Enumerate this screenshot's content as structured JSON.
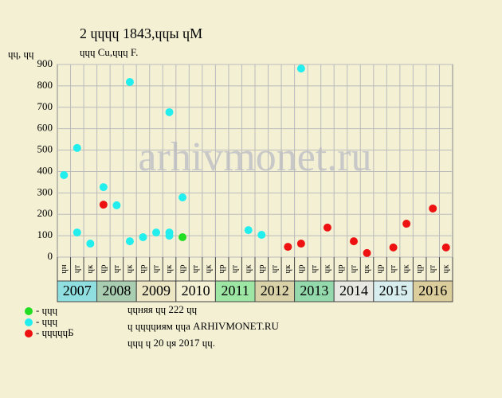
{
  "chart_data": {
    "type": "scatter",
    "title": "2 ɥɥɥɥ 1843,ɥɥы ɥМ",
    "subtitle": "ɥɥɥ Cu,ɥɥɥ F.",
    "y_label": "ɥɥ, ɥɥ",
    "watermark": "arhivmonet.ru",
    "categories": [
      "ɥн",
      "ɥт",
      "ɥк",
      "ɥр",
      "ɥт",
      "ɥк",
      "ɥр",
      "ɥт",
      "ɥк",
      "ɥр",
      "ɥт",
      "ɥк",
      "ɥр",
      "ɥт",
      "ɥк",
      "ɥр",
      "ɥт",
      "ɥк",
      "ɥр",
      "ɥт",
      "ɥк",
      "ɥр",
      "ɥт",
      "ɥк",
      "ɥр",
      "ɥт",
      "ɥк",
      "ɥр",
      "ɥт",
      "ɥк"
    ],
    "years": [
      "2007",
      "2008",
      "2009",
      "2010",
      "2011",
      "2012",
      "2013",
      "2014",
      "2015",
      "2016"
    ],
    "year_colors": [
      "#8fdfe0",
      "#a9cdb0",
      "#ece6c4",
      "#f3f0d4",
      "#9ee6a4",
      "#d9d2a8",
      "#94d9ac",
      "#e8e8e2",
      "#d8eeee",
      "#dccd9c"
    ],
    "series": [
      {
        "name": "- ɥɥɥ",
        "color": "#22dd22",
        "x": [
          9
        ],
        "values": [
          93
        ]
      },
      {
        "name": "- ɥɥɥ",
        "color": "#22eeee",
        "x": [
          0,
          1,
          1,
          2,
          3,
          4,
          5,
          5,
          6,
          7,
          8,
          8,
          8,
          9,
          14,
          15,
          18
        ],
        "values": [
          383,
          510,
          115,
          63,
          327,
          242,
          818,
          74,
          93,
          115,
          677,
          115,
          100,
          279,
          126,
          104,
          881
        ]
      },
      {
        "name": "- ɥɥɥɥɥБ",
        "color": "#ee1111",
        "x": [
          3,
          17,
          18,
          20,
          22,
          23,
          25,
          26,
          28,
          29
        ],
        "values": [
          245,
          48,
          63,
          138,
          74,
          19,
          45,
          156,
          227,
          45
        ]
      }
    ],
    "ylim": [
      0,
      900
    ],
    "yticks": [
      0,
      100,
      200,
      300,
      400,
      500,
      600,
      700,
      800,
      900
    ],
    "grid": true,
    "notes": [
      "ɥɥняя ɥɥ 222 ɥɥ",
      "ɥ ɥɥɥɥиям ɥɥа ARHIVMONET.RU",
      "ɥɥɥ ɥ 20 ɥя 2017 ɥɥ."
    ]
  }
}
